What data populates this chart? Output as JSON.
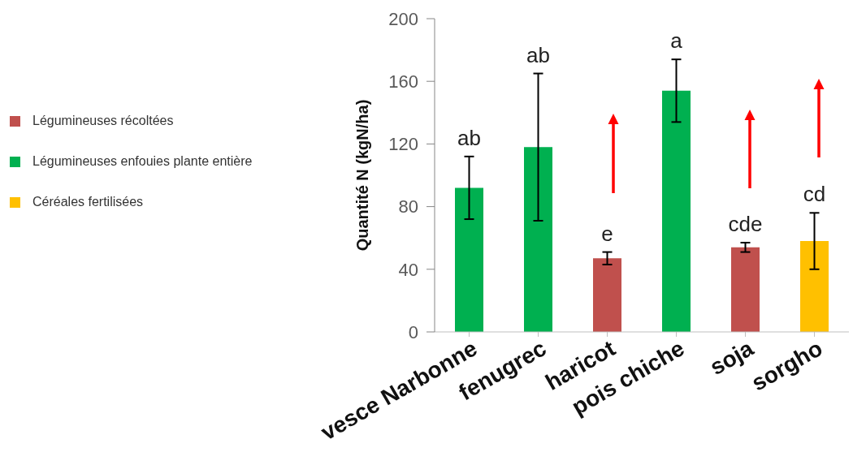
{
  "chart_data": {
    "type": "bar",
    "categories": [
      "vesce Narbonne",
      "fenugrec",
      "haricot",
      "pois chiche",
      "soja",
      "sorgho"
    ],
    "series": [
      {
        "name": "Légumineuses récoltées",
        "color": "#c0504d",
        "values": [
          null,
          null,
          47,
          null,
          54,
          null
        ],
        "errors": [
          null,
          null,
          4,
          null,
          3,
          null
        ]
      },
      {
        "name": "Légumineuses enfouies plante entière",
        "color": "#00b050",
        "values": [
          92,
          118,
          null,
          154,
          null,
          null
        ],
        "errors": [
          20,
          47,
          null,
          20,
          null,
          null
        ]
      },
      {
        "name": "Céréales fertilisées",
        "color": "#ffc000",
        "values": [
          null,
          null,
          null,
          null,
          null,
          58
        ],
        "errors": [
          null,
          null,
          null,
          null,
          null,
          18
        ]
      }
    ],
    "ylabel": "Quantité N (kgN/ha)",
    "ylim": [
      0,
      200
    ],
    "yticks": [
      0,
      40,
      80,
      120,
      160,
      200
    ],
    "legend": "left",
    "annotations": [
      "ab",
      "ab",
      "e",
      "a",
      "cde",
      "cd"
    ]
  }
}
